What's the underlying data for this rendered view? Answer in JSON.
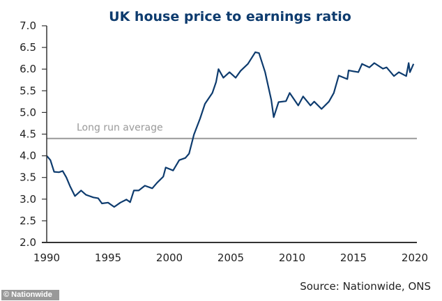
{
  "chart_data": {
    "type": "line",
    "title": "UK house price to earnings ratio",
    "xlabel": "",
    "ylabel": "",
    "xlim": [
      1990,
      2020
    ],
    "ylim": [
      2.0,
      7.0
    ],
    "x_ticks": [
      "1990",
      "1995",
      "2000",
      "2005",
      "2010",
      "2015",
      "2020"
    ],
    "y_ticks": [
      "2.0",
      "2.5",
      "3.0",
      "3.5",
      "4.0",
      "4.5",
      "5.0",
      "5.5",
      "6.0",
      "6.5",
      "7.0"
    ],
    "grid": false,
    "line_color": "#0d3b6e",
    "reference_line": {
      "label": "Long run average",
      "value": 4.4,
      "color": "#999999"
    },
    "series": [
      {
        "x": [
          1990.0,
          1990.3,
          1990.6,
          1991.0,
          1991.3,
          1991.6,
          1991.9,
          1992.3,
          1992.8,
          1993.2,
          1993.8,
          1994.2,
          1994.5,
          1995.0,
          1995.5,
          1996.0,
          1996.5,
          1996.8,
          1997.1,
          1997.5,
          1998.0,
          1998.6,
          1999.0,
          1999.5,
          1999.7,
          2000.3,
          2000.8,
          2001.3,
          2001.6,
          2002.0,
          2002.5,
          2002.9,
          2003.5,
          2003.8,
          2004.0,
          2004.4,
          2004.9,
          2005.4,
          2005.8,
          2006.4,
          2007.0,
          2007.3,
          2007.8,
          2008.3,
          2008.5,
          2008.9,
          2009.5,
          2009.8,
          2010.5,
          2010.9,
          2011.5,
          2011.8,
          2012.4,
          2013.0,
          2013.4,
          2013.8,
          2014.5,
          2014.6,
          2015.4,
          2015.7,
          2016.3,
          2016.7,
          2017.4,
          2017.7,
          2018.3,
          2018.7,
          2019.3,
          2019.5,
          2019.6,
          2019.9
        ],
        "y": [
          4.0,
          3.9,
          3.63,
          3.62,
          3.65,
          3.5,
          3.3,
          3.07,
          3.2,
          3.1,
          3.04,
          3.02,
          2.9,
          2.92,
          2.82,
          2.92,
          2.99,
          2.93,
          3.2,
          3.2,
          3.31,
          3.25,
          3.38,
          3.52,
          3.73,
          3.66,
          3.9,
          3.95,
          4.05,
          4.49,
          4.86,
          5.2,
          5.45,
          5.7,
          6.0,
          5.8,
          5.93,
          5.8,
          5.96,
          6.12,
          6.39,
          6.37,
          5.93,
          5.29,
          4.89,
          5.24,
          5.26,
          5.45,
          5.16,
          5.37,
          5.16,
          5.25,
          5.08,
          5.25,
          5.45,
          5.85,
          5.77,
          5.97,
          5.93,
          6.12,
          6.04,
          6.14,
          6.01,
          6.04,
          5.84,
          5.93,
          5.84,
          6.14,
          5.93,
          6.12
        ]
      }
    ]
  },
  "footer": {
    "source": "Source: Nationwide, ONS",
    "watermark": "© Nationwide"
  }
}
